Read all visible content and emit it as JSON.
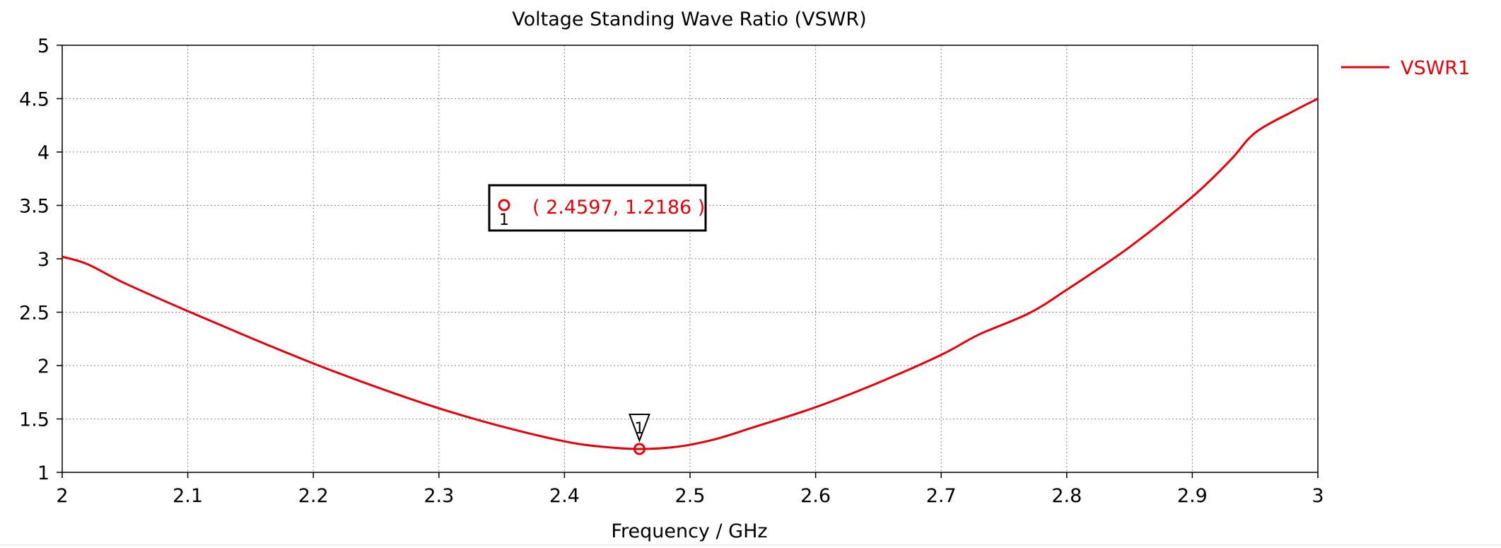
{
  "chart_data": {
    "type": "line",
    "title": "Voltage Standing Wave Ratio (VSWR)",
    "xlabel": "Frequency / GHz",
    "ylabel": "",
    "xlim": [
      2,
      3
    ],
    "ylim": [
      1,
      5
    ],
    "x_ticks": [
      2,
      2.1,
      2.2,
      2.3,
      2.4,
      2.5,
      2.6,
      2.7,
      2.8,
      2.9,
      3
    ],
    "y_ticks": [
      1,
      1.5,
      2,
      2.5,
      3,
      3.5,
      4,
      4.5,
      5
    ],
    "x_tick_labels": [
      "2",
      "2.1",
      "2.2",
      "2.3",
      "2.4",
      "2.5",
      "2.6",
      "2.7",
      "2.8",
      "2.9",
      "3"
    ],
    "y_tick_labels": [
      "1",
      "1.5",
      "2",
      "2.5",
      "3",
      "3.5",
      "4",
      "4.5",
      "5"
    ],
    "grid": true,
    "legend_position": "top-right",
    "series": [
      {
        "name": "VSWR1",
        "color": "#e8000b",
        "x": [
          2.0,
          2.02,
          2.05,
          2.1,
          2.15,
          2.2,
          2.25,
          2.3,
          2.35,
          2.4,
          2.43,
          2.4597,
          2.49,
          2.52,
          2.55,
          2.6,
          2.65,
          2.7,
          2.73,
          2.77,
          2.8,
          2.85,
          2.9,
          2.93,
          2.95,
          2.98,
          3.0
        ],
        "y": [
          3.02,
          2.95,
          2.77,
          2.51,
          2.26,
          2.02,
          1.8,
          1.6,
          1.43,
          1.29,
          1.24,
          1.2186,
          1.24,
          1.31,
          1.42,
          1.61,
          1.84,
          2.1,
          2.29,
          2.49,
          2.71,
          3.11,
          3.58,
          3.92,
          4.18,
          4.38,
          4.5
        ]
      }
    ],
    "marker": {
      "id": "1",
      "x": 2.4597,
      "y": 1.2186,
      "label": "( 2.4597, 1.2186 )"
    }
  }
}
